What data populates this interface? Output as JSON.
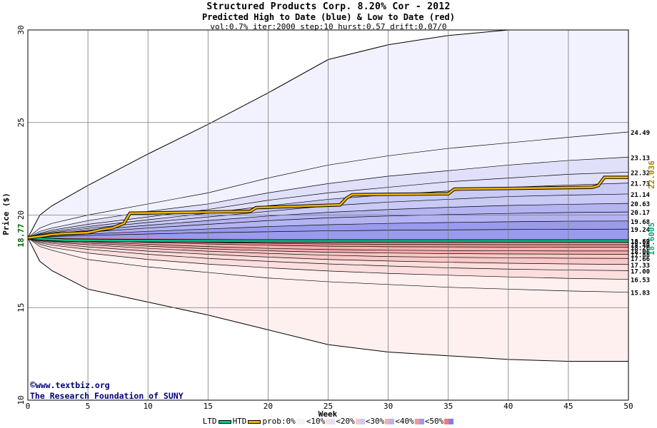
{
  "title": {
    "main": "Structured Products Corp. 8.20% Cor - 2012",
    "sub": "Predicted High to Date (blue) &  Low to Date (red)",
    "params": "vol:0.7% iter:2000 step:10 hurst:0.57 drift:0.07/0"
  },
  "credit": {
    "url": "www.textbiz.org",
    "org": "The Research Foundation of SUNY"
  },
  "legend": {
    "ltd": "LTD",
    "htd": "HTD",
    "prob": "prob:0%",
    "bins": [
      "<10%",
      "<20%",
      "<30%",
      "<40%",
      "<50%"
    ]
  },
  "chart_data": {
    "type": "area",
    "title": "Structured Products Corp. 8.20% Cor - 2012",
    "xlabel": "Week",
    "ylabel": "Price ($)",
    "xlim": [
      0,
      50
    ],
    "ylim": [
      10,
      30
    ],
    "xticks": [
      0,
      5,
      10,
      15,
      20,
      25,
      30,
      35,
      40,
      45,
      50
    ],
    "yticks": [
      10,
      15,
      20,
      25,
      30
    ],
    "grid": true,
    "start_price": "18.77",
    "colors": {
      "htd_line": "#f0b400",
      "ltd_line": "#00c890",
      "blue_bands": [
        "#f2f2ff",
        "#e0e0fb",
        "#cacaf6",
        "#b4b4f2",
        "#9a9aee",
        "#7e7eea"
      ],
      "red_bands": [
        "#fff0f0",
        "#fddede",
        "#fbc8c8",
        "#f8b0b0",
        "#f49696",
        "#f07a7a"
      ],
      "htd_value": "#a08400",
      "ltd_value": "#00a878"
    },
    "x_support": [
      0,
      1,
      2,
      5,
      10,
      15,
      20,
      25,
      30,
      35,
      40,
      45,
      50
    ],
    "blue_quantiles": [
      {
        "label": "",
        "values": [
          18.77,
          20.0,
          20.5,
          21.6,
          23.3,
          24.9,
          26.6,
          28.4,
          29.2,
          29.7,
          30.0,
          30.0,
          30.0
        ]
      },
      {
        "label": "24.49",
        "values": [
          18.77,
          19.3,
          19.55,
          20.0,
          20.6,
          21.2,
          22.0,
          22.7,
          23.2,
          23.6,
          23.9,
          24.2,
          24.49
        ]
      },
      {
        "label": "23.13",
        "values": [
          18.77,
          19.12,
          19.3,
          19.7,
          20.2,
          20.6,
          21.2,
          21.7,
          22.1,
          22.4,
          22.7,
          22.95,
          23.13
        ]
      },
      {
        "label": "22.32",
        "values": [
          18.77,
          19.02,
          19.18,
          19.5,
          19.9,
          20.3,
          20.8,
          21.2,
          21.5,
          21.8,
          22.0,
          22.2,
          22.32
        ]
      },
      {
        "label": "21.73",
        "values": [
          18.77,
          18.98,
          19.1,
          19.38,
          19.75,
          20.1,
          20.5,
          20.85,
          21.1,
          21.3,
          21.5,
          21.62,
          21.73
        ]
      },
      {
        "label": "21.14",
        "values": [
          18.77,
          18.94,
          19.04,
          19.28,
          19.6,
          19.9,
          20.2,
          20.5,
          20.7,
          20.85,
          21.0,
          21.08,
          21.14
        ]
      },
      {
        "label": "20.63",
        "values": [
          18.77,
          18.9,
          18.98,
          19.18,
          19.45,
          19.7,
          19.95,
          20.15,
          20.3,
          20.42,
          20.52,
          20.58,
          20.63
        ]
      },
      {
        "label": "20.17",
        "values": [
          18.77,
          18.87,
          18.93,
          19.08,
          19.3,
          19.5,
          19.7,
          19.85,
          19.95,
          20.03,
          20.09,
          20.14,
          20.17
        ]
      },
      {
        "label": "19.68",
        "values": [
          18.77,
          18.84,
          18.88,
          18.98,
          19.12,
          19.25,
          19.38,
          19.48,
          19.55,
          19.6,
          19.64,
          19.67,
          19.68
        ]
      },
      {
        "label": "19.24",
        "values": [
          18.77,
          18.81,
          18.84,
          18.9,
          18.98,
          19.05,
          19.1,
          19.15,
          19.18,
          19.2,
          19.22,
          19.23,
          19.24
        ]
      },
      {
        "label": "18.62",
        "values": [
          18.77,
          18.75,
          18.73,
          18.7,
          18.68,
          18.66,
          18.65,
          18.64,
          18.63,
          18.63,
          18.62,
          18.62,
          18.62
        ]
      }
    ],
    "red_quantiles": [
      {
        "label": "",
        "values": [
          18.77,
          17.5,
          17.0,
          16.0,
          15.3,
          14.6,
          13.8,
          13.0,
          12.6,
          12.4,
          12.2,
          12.1,
          12.1
        ]
      },
      {
        "label": "15.83",
        "values": [
          18.77,
          18.3,
          18.1,
          17.6,
          17.2,
          16.9,
          16.6,
          16.4,
          16.25,
          16.1,
          16.0,
          15.9,
          15.83
        ]
      },
      {
        "label": "16.53",
        "values": [
          18.77,
          18.42,
          18.25,
          17.95,
          17.6,
          17.35,
          17.15,
          16.98,
          16.85,
          16.75,
          16.66,
          16.58,
          16.53
        ]
      },
      {
        "label": "17.00",
        "values": [
          18.77,
          18.5,
          18.38,
          18.15,
          17.88,
          17.66,
          17.5,
          17.36,
          17.25,
          17.15,
          17.08,
          17.03,
          17.0
        ]
      },
      {
        "label": "17.33",
        "values": [
          18.77,
          18.56,
          18.47,
          18.28,
          18.05,
          17.88,
          17.73,
          17.6,
          17.52,
          17.45,
          17.4,
          17.36,
          17.33
        ]
      },
      {
        "label": "17.66",
        "values": [
          18.77,
          18.61,
          18.54,
          18.4,
          18.2,
          18.05,
          17.93,
          17.83,
          17.76,
          17.72,
          17.69,
          17.67,
          17.66
        ]
      },
      {
        "label": "17.88",
        "values": [
          18.77,
          18.64,
          18.59,
          18.48,
          18.32,
          18.18,
          18.07,
          17.99,
          17.95,
          17.92,
          17.9,
          17.89,
          17.88
        ]
      },
      {
        "label": "18.06",
        "values": [
          18.77,
          18.67,
          18.63,
          18.55,
          18.42,
          18.3,
          18.2,
          18.14,
          18.1,
          18.08,
          18.07,
          18.06,
          18.06
        ]
      },
      {
        "label": "18.26",
        "values": [
          18.77,
          18.7,
          18.67,
          18.61,
          18.52,
          18.44,
          18.37,
          18.32,
          18.29,
          18.28,
          18.27,
          18.26,
          18.26
        ]
      },
      {
        "label": "18.40",
        "values": [
          18.77,
          18.72,
          18.7,
          18.65,
          18.58,
          18.52,
          18.47,
          18.44,
          18.42,
          18.41,
          18.4,
          18.4,
          18.4
        ]
      },
      {
        "label": "18.59",
        "values": [
          18.77,
          18.75,
          18.73,
          18.7,
          18.66,
          18.63,
          18.61,
          18.6,
          18.6,
          18.59,
          18.59,
          18.59,
          18.59
        ]
      }
    ],
    "htd_path": {
      "name": "HTD",
      "final_value": "22.036",
      "x": [
        0,
        1,
        2,
        3,
        5,
        6,
        7,
        8,
        8.5,
        18.5,
        19,
        26,
        26.5,
        27,
        35,
        35.5,
        47,
        47.5,
        48,
        50
      ],
      "y": [
        18.77,
        18.85,
        18.95,
        19.0,
        19.05,
        19.2,
        19.3,
        19.55,
        20.1,
        20.2,
        20.4,
        20.55,
        20.9,
        21.1,
        21.15,
        21.4,
        21.5,
        21.6,
        22.036,
        22.036
      ]
    },
    "ltd_path": {
      "name": "LTD",
      "final_value": "18.6005",
      "x": [
        0,
        1,
        2,
        3,
        8,
        18,
        50
      ],
      "y": [
        18.77,
        18.72,
        18.68,
        18.65,
        18.62,
        18.6005,
        18.6005
      ]
    }
  }
}
